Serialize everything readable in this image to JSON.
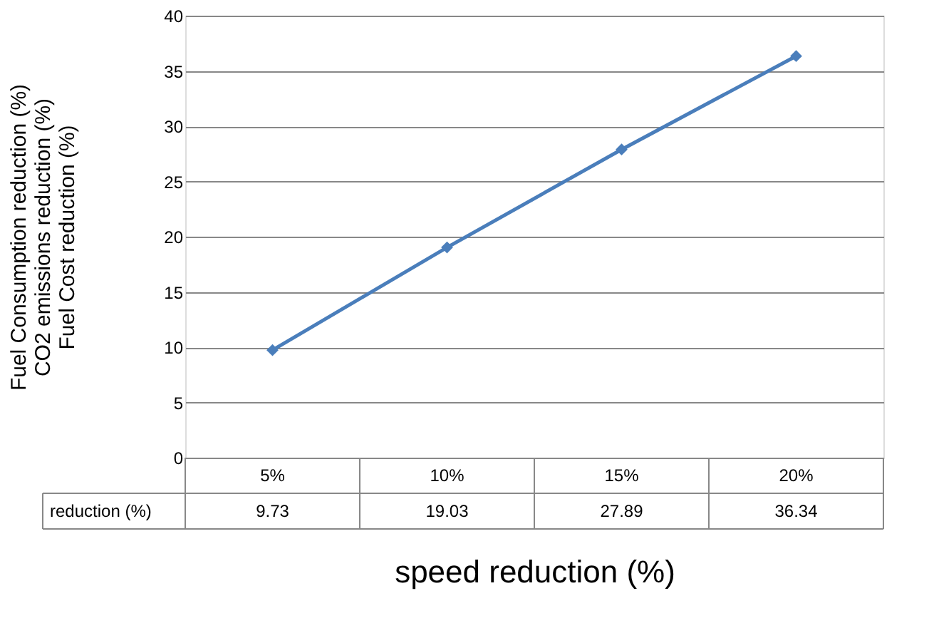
{
  "chart_data": {
    "type": "line",
    "xlabel": "speed reduction (%)",
    "ylabel": "Fuel Consumption  reduction (%)\nCO2 emissions  reduction (%)\nFuel Cost  reduction (%)",
    "categories": [
      "5%",
      "10%",
      "15%",
      "20%"
    ],
    "series": [
      {
        "name": "reduction (%)",
        "color": "#4a7ebb",
        "values": [
          9.73,
          19.03,
          27.89,
          36.34
        ]
      }
    ],
    "ylim": [
      0,
      40
    ],
    "yticks": [
      0,
      5,
      10,
      15,
      20,
      25,
      30,
      35,
      40
    ],
    "grid": "y",
    "marker": "diamond",
    "line_style": "solid",
    "data_labels": true
  }
}
